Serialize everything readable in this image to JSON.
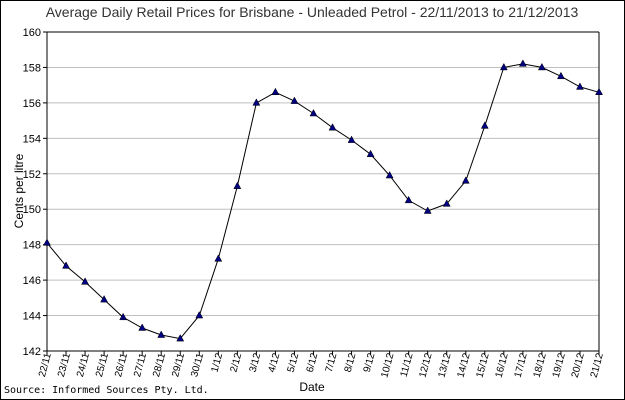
{
  "chart_data": {
    "type": "line",
    "title": "Average Daily Retail Prices for Brisbane - Unleaded Petrol - 22/11/2013 to 21/12/2013",
    "xlabel": "Date",
    "ylabel": "Cents per litre",
    "ylim": [
      142,
      160
    ],
    "yticks": [
      142,
      144,
      146,
      148,
      150,
      152,
      154,
      156,
      158,
      160
    ],
    "grid": true,
    "categories": [
      "22/11",
      "23/11",
      "24/11",
      "25/11",
      "26/11",
      "27/11",
      "28/11",
      "29/11",
      "30/11",
      "1/12",
      "2/12",
      "3/12",
      "4/12",
      "5/12",
      "6/12",
      "7/12",
      "8/12",
      "9/12",
      "10/12",
      "11/12",
      "12/12",
      "13/12",
      "14/12",
      "15/12",
      "16/12",
      "17/12",
      "18/12",
      "19/12",
      "20/12",
      "21/12"
    ],
    "series": [
      {
        "values": [
          148.1,
          146.8,
          145.9,
          144.9,
          143.9,
          143.3,
          142.9,
          142.7,
          144.0,
          147.2,
          151.3,
          156.0,
          156.6,
          156.1,
          155.4,
          154.6,
          153.9,
          153.1,
          151.9,
          150.5,
          149.9,
          150.3,
          151.6,
          154.7,
          158.0,
          158.2,
          158.0,
          157.5,
          156.9,
          156.6
        ],
        "color": "#000000",
        "marker_color": "#000080"
      }
    ]
  },
  "source": "Source: Informed Sources Pty. Ltd.",
  "colors": {
    "grid": "#c0c0c0",
    "axis": "#000000"
  }
}
